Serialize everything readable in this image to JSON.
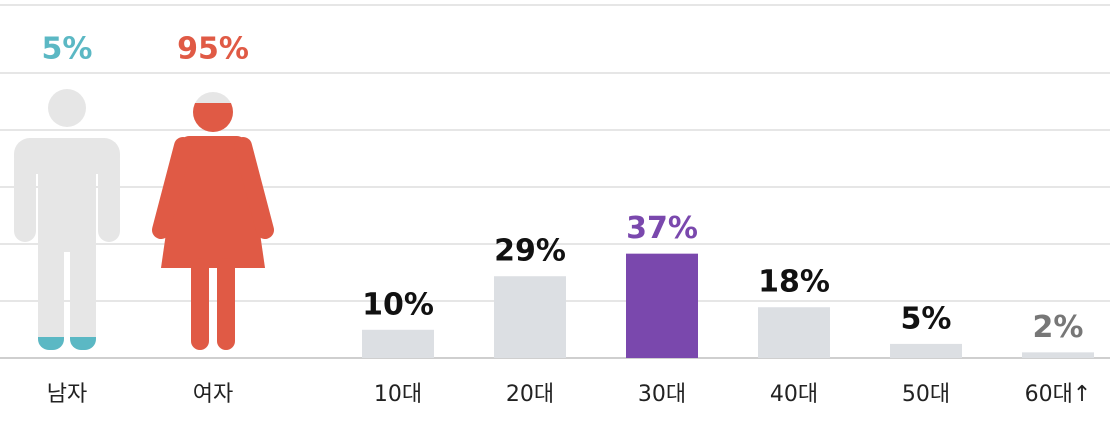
{
  "chart_data": [
    {
      "type": "pictogram",
      "categories": [
        "남자",
        "여자"
      ],
      "values": [
        5,
        95
      ],
      "value_labels": [
        "5%",
        "95%"
      ],
      "colors": [
        "#5bb8c4",
        "#e05a45"
      ],
      "empty_color": "#e6e6e6"
    },
    {
      "type": "bar",
      "categories": [
        "10대",
        "20대",
        "30대",
        "40대",
        "50대",
        "60대↑"
      ],
      "values": [
        10,
        29,
        37,
        18,
        5,
        2
      ],
      "value_labels": [
        "10%",
        "29%",
        "37%",
        "18%",
        "5%",
        "2%"
      ],
      "colors": [
        "#dcdfe3",
        "#dcdfe3",
        "#7a48ad",
        "#dcdfe3",
        "#dcdfe3",
        "#dcdfe3"
      ],
      "label_colors": [
        "#111111",
        "#111111",
        "#7a48ad",
        "#111111",
        "#111111",
        "#777777"
      ]
    }
  ]
}
